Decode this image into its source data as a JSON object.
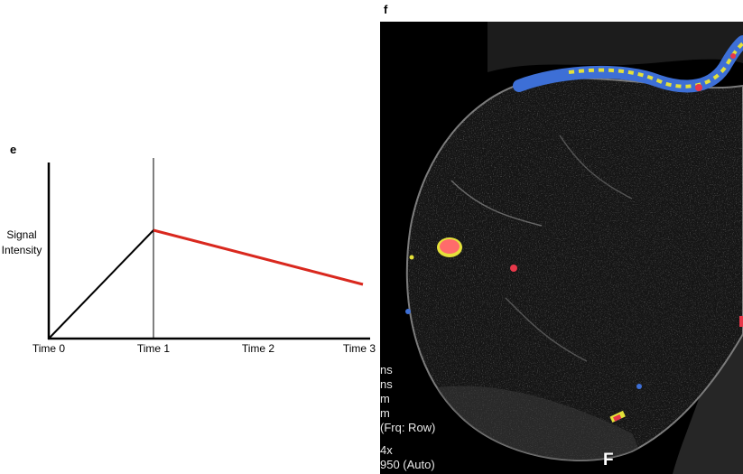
{
  "panel_e": {
    "label": "e",
    "chart_data": {
      "type": "line",
      "title": "",
      "xlabel": "",
      "ylabel_lines": [
        "Signal",
        "Intensity"
      ],
      "categories": [
        "Time 0",
        "Time 1",
        "Time 2",
        "Time 3"
      ],
      "x": [
        0,
        1,
        2,
        3
      ],
      "xlim": [
        0,
        3
      ],
      "ylim": [
        0,
        1
      ],
      "grid": false,
      "legend": "none",
      "vertical_marker_at": 1,
      "series": [
        {
          "x": [
            0,
            1
          ],
          "values": [
            0,
            0.6
          ],
          "color": "#000000"
        },
        {
          "x": [
            1,
            3
          ],
          "values": [
            0.6,
            0.3
          ],
          "color": "#d9281e"
        }
      ]
    }
  },
  "panel_f": {
    "label": "f",
    "image_description_colors": {
      "background": "#000000",
      "tissue": "#6e6e6e",
      "overlay_blue": "#3d6fd6",
      "overlay_yellow": "#e4e13a",
      "overlay_red": "#e8384a",
      "overlay_pink": "#ff6b6b"
    },
    "overlay_text_lines": [
      "ns",
      "ns",
      "m",
      "m",
      "(Frq: Row)",
      "",
      "4x",
      "950 (Auto)"
    ],
    "corner_letter": "F"
  }
}
